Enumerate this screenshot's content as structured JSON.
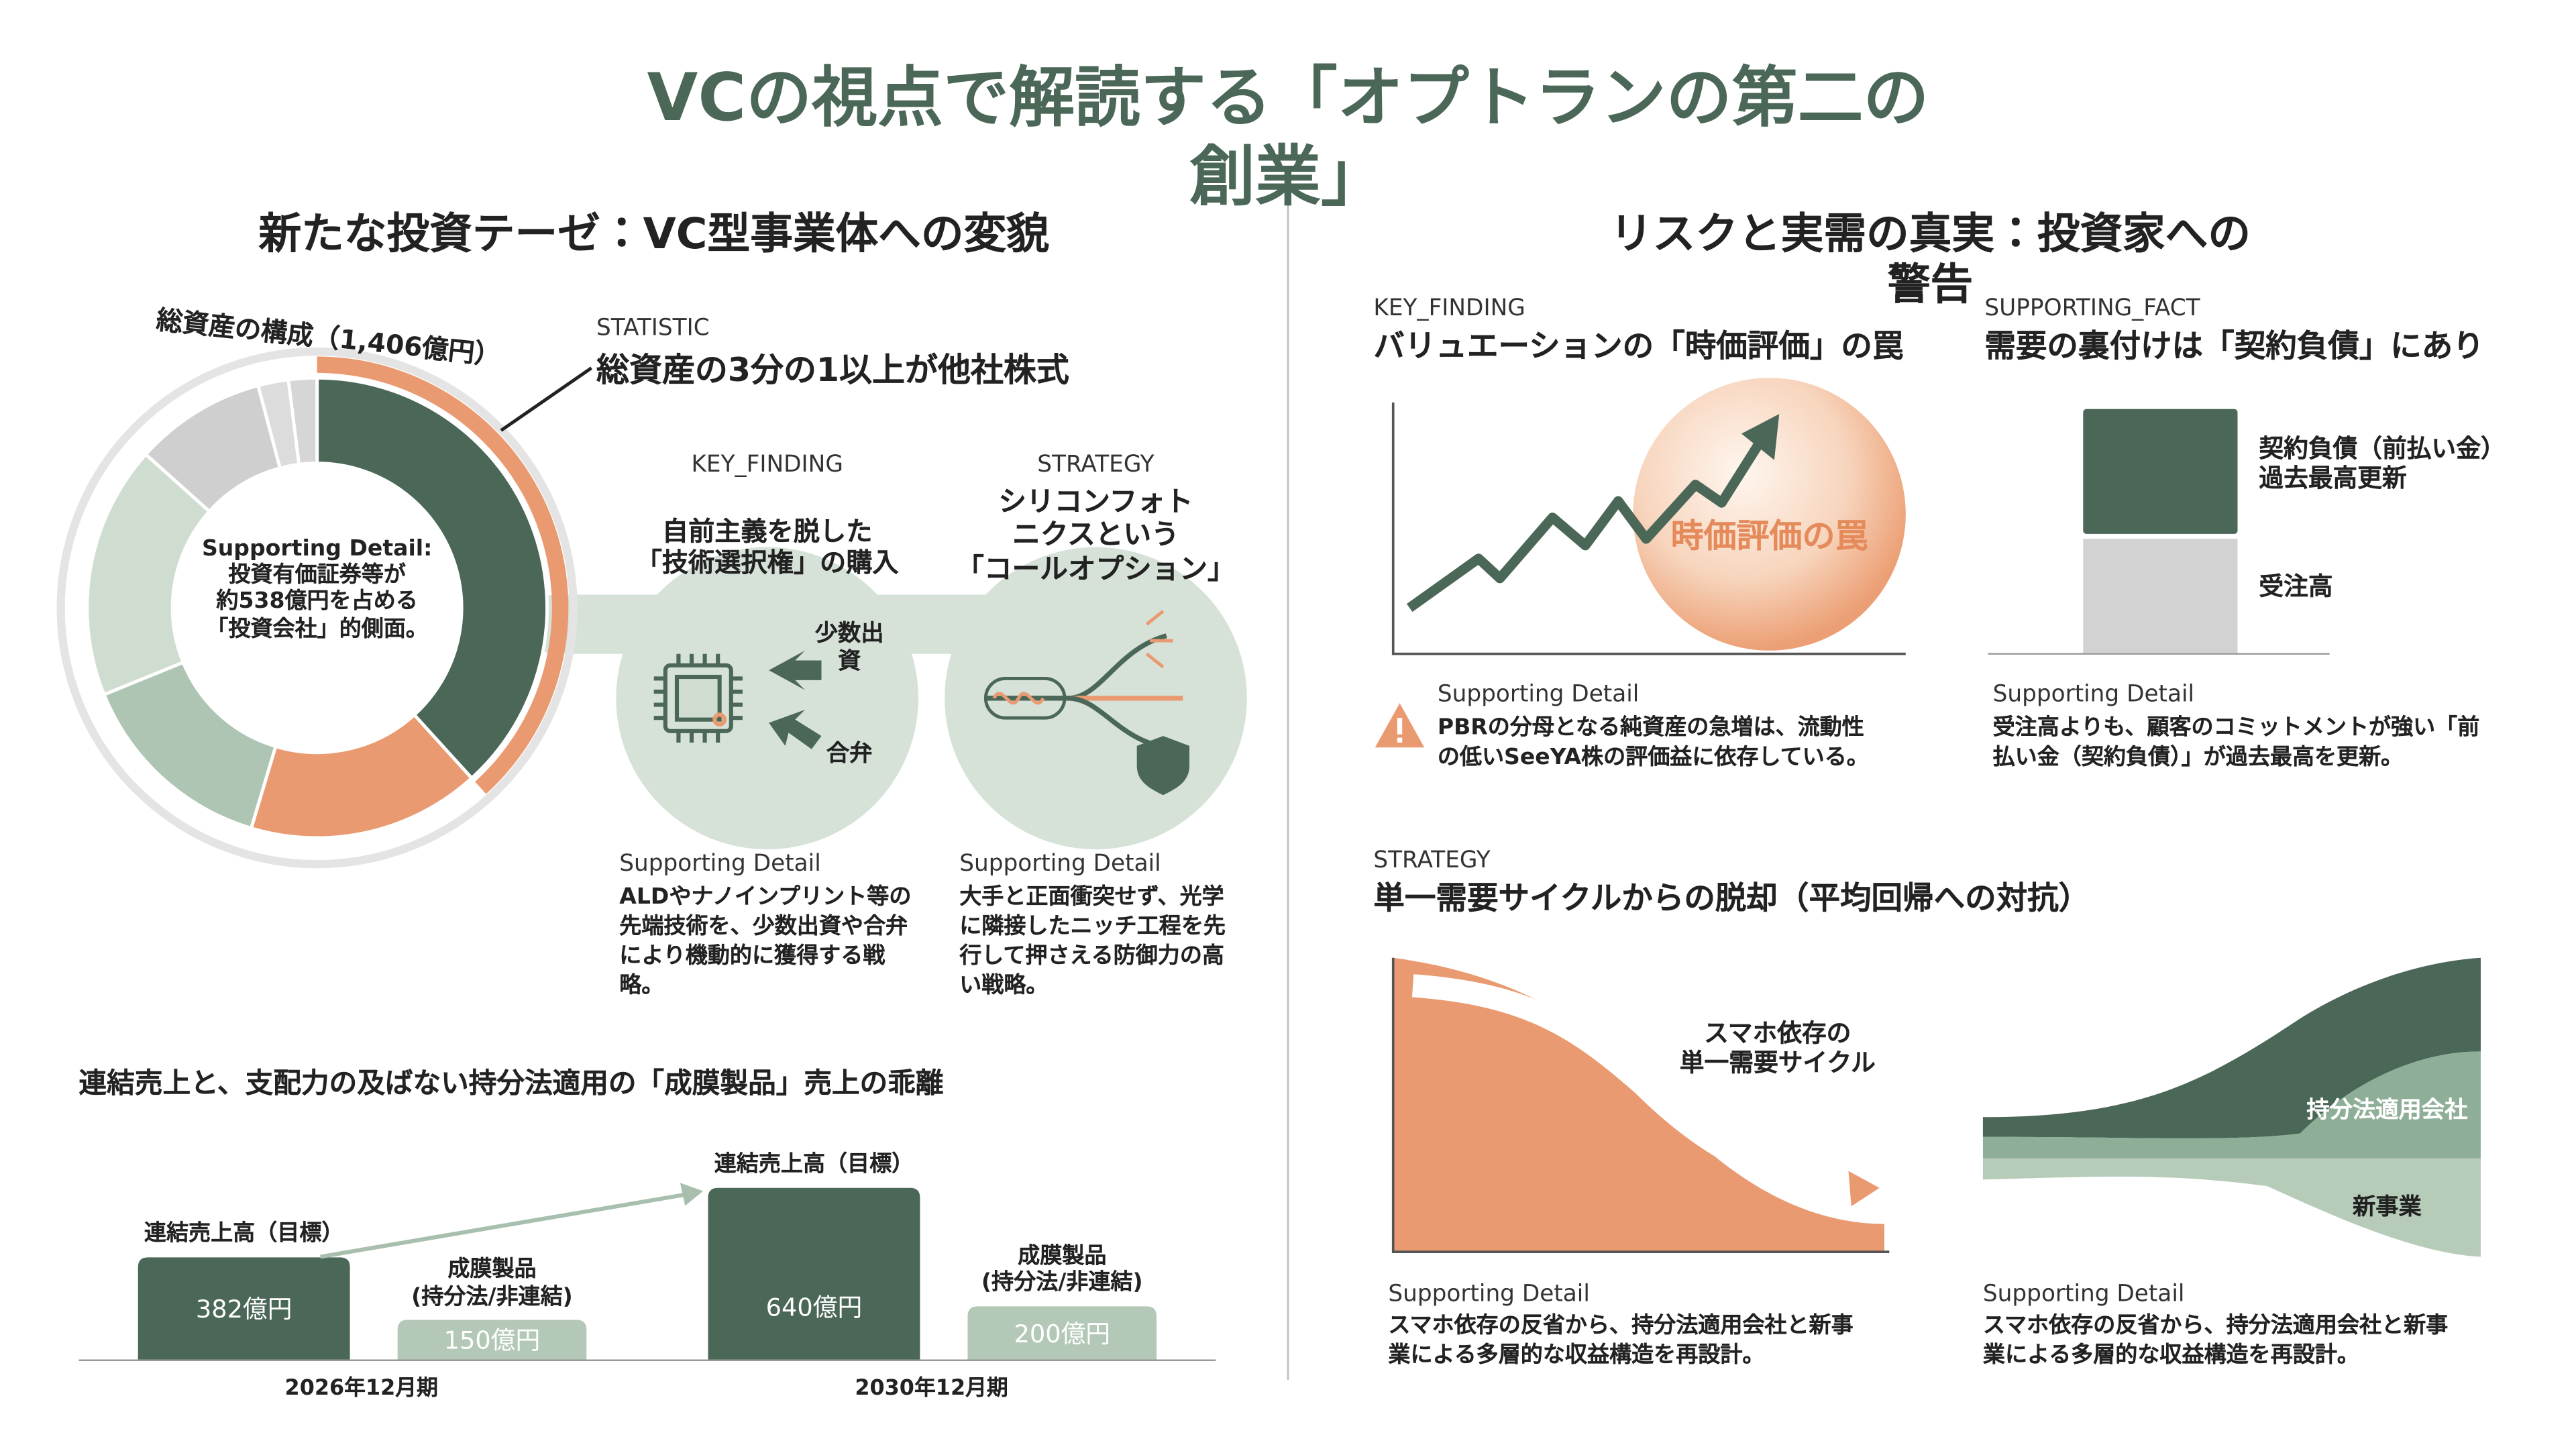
{
  "title": "VCの視点で解読する「オプトランの第二の創業」",
  "left": {
    "heading": "新たな投資テーゼ：VC型事業体への変貌",
    "donut_center": "Supporting Detail:\n投資有価証券等が\n約538億円を占める\n「投資会社」的側面。",
    "statistic": {
      "label": "STATISTIC",
      "text": "総資産の3分の1以上が他社株式"
    },
    "key_finding": {
      "label": "KEY_FINDING",
      "text": "自前主義を脱した\n「技術選択権」の購入",
      "icon_labels": [
        "少数出\n資",
        "合弁"
      ],
      "detail_label": "Supporting Detail",
      "detail": "ALDやナノインプリント等の\n先端技術を、少数出資や合弁\nにより機動的に獲得する戦\n略。"
    },
    "strategy": {
      "label": "STRATEGY",
      "text": "シリコンフォト\nニクスという\n「コールオプション」",
      "detail_label": "Supporting Detail",
      "detail": "大手と正面衝突せず、光学\nに隣接したニッチ工程を先\n行して押さえる防御力の高\nい戦略。"
    }
  },
  "right": {
    "heading": "リスクと実需の真実：投資家への警告",
    "key_finding": {
      "label": "KEY_FINDING",
      "text": "バリュエーションの「時価評価」の罠",
      "bubble": "時価評価の罠",
      "detail_label": "Supporting Detail",
      "detail": "PBRの分母となる純資産の急増は、流動性\nの低いSeeYA株の評価益に依存している。"
    },
    "supporting_fact": {
      "label": "SUPPORTING_FACT",
      "text": "需要の裏付けは「契約負債」にあり",
      "bar_labels": [
        "契約負債（前払い金）\n過去最高更新",
        "受注高"
      ],
      "detail_label": "Supporting Detail",
      "detail": "受注高よりも、顧客のコミットメントが強い「前\n払い金（契約負債）」が過去最高を更新。"
    },
    "strategy": {
      "label": "STRATEGY",
      "text": "単一需要サイクルからの脱却（平均回帰への対抗）",
      "curve_label": "スマホ依存の\n単一需要サイクル",
      "stream_labels": [
        "持分法適用会社",
        "新事業"
      ],
      "details": [
        {
          "label": "Supporting Detail",
          "text": "スマホ依存の反省から、持分法適用会社と新事\n業による多層的な収益構造を再設計。"
        },
        {
          "label": "Supporting Detail",
          "text": "スマホ依存の反省から、持分法適用会社と新事\n業による多層的な収益構造を再設計。"
        }
      ]
    }
  },
  "chart_data": [
    {
      "type": "donut",
      "title": "総資産の構成（1,406億円）",
      "values": [
        538,
        230,
        200,
        250,
        130,
        30,
        28
      ],
      "colors": [
        "#4b6757",
        "#ea9a70",
        "#adc5b2",
        "#cfddd1",
        "#cfcfcf",
        "#dcdcdc",
        "#d6d6d6"
      ],
      "highlight_color": "#ea9a70"
    },
    {
      "type": "bar",
      "title": "連結売上と、支配力の及ばない持分法適用の「成膜製品」売上の乖離",
      "categories": [
        "2026年12月期",
        "2030年12月期"
      ],
      "series": [
        {
          "name": "連結売上高（目標）",
          "color": "#4b6757",
          "values": [
            382,
            640
          ],
          "value_labels": [
            "382億円",
            "640億円"
          ]
        },
        {
          "name": "成膜製品\n(持分法/非連結)",
          "color": "#b4c8b8",
          "values": [
            150,
            200
          ],
          "value_labels": [
            "150億円",
            "200億円"
          ]
        }
      ]
    }
  ]
}
